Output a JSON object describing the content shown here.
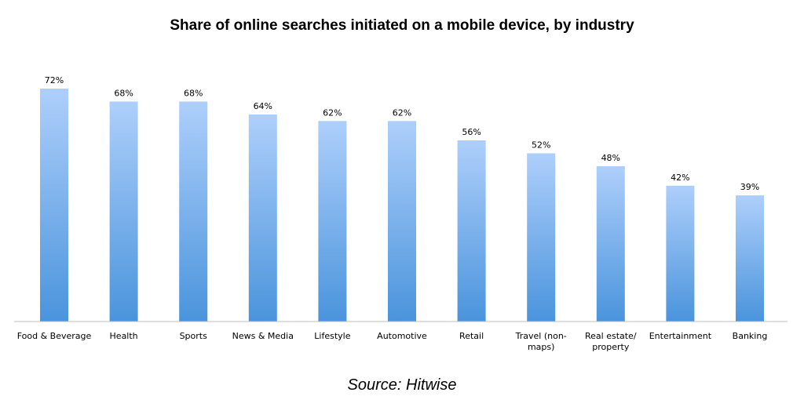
{
  "chart_data": {
    "type": "bar",
    "title": "Share of online searches initiated on a mobile device, by industry",
    "source": "Source: Hitwise",
    "categories": [
      [
        "Food & Beverage"
      ],
      [
        "Health"
      ],
      [
        "Sports"
      ],
      [
        "News & Media"
      ],
      [
        "Lifestyle"
      ],
      [
        "Automotive"
      ],
      [
        "Retail"
      ],
      [
        "Travel (non-",
        "maps)"
      ],
      [
        "Real estate/",
        "property"
      ],
      [
        "Entertainment"
      ],
      [
        "Banking"
      ]
    ],
    "values": [
      72,
      68,
      68,
      64,
      62,
      62,
      56,
      52,
      48,
      42,
      39
    ],
    "value_labels": [
      "72%",
      "68%",
      "68%",
      "64%",
      "62%",
      "62%",
      "56%",
      "52%",
      "48%",
      "42%",
      "39%"
    ],
    "ylim": [
      0,
      72
    ],
    "grid": false,
    "legend": "none",
    "colors": {
      "bar_top": "#aecffb",
      "bar_bottom": "#4a94dc",
      "axis": "#bfbfbf"
    }
  }
}
